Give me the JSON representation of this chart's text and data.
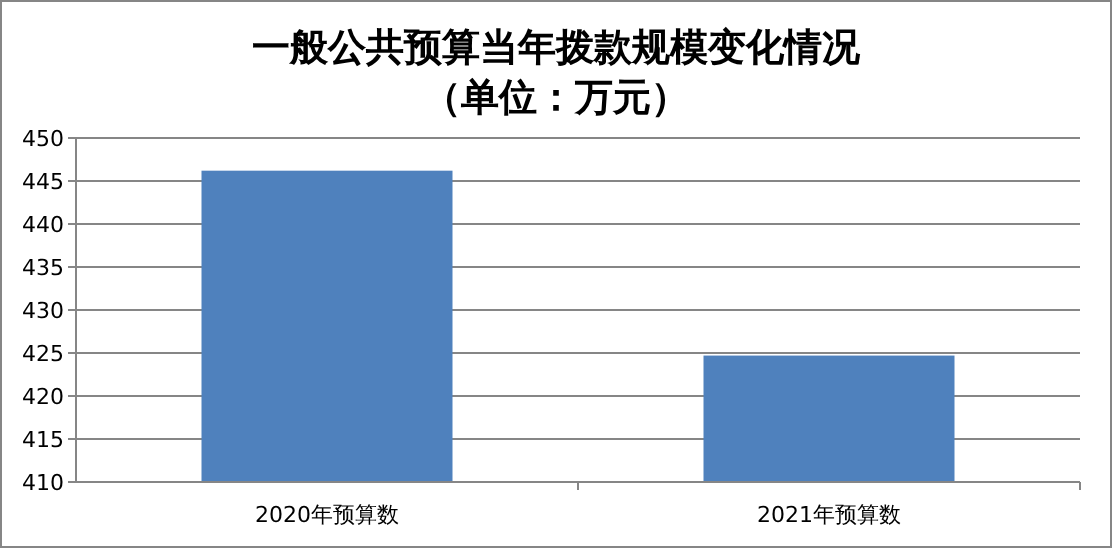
{
  "chart_data": {
    "type": "bar",
    "title": "一般公共预算当年拨款规模变化情况",
    "subtitle": "（单位：万元）",
    "categories": [
      "2020年预算数",
      "2021年预算数"
    ],
    "values": [
      446.2,
      424.7
    ],
    "color": "#4f81bd",
    "ylim": [
      410,
      450
    ],
    "yticks": [
      410,
      415,
      420,
      425,
      430,
      435,
      440,
      445,
      450
    ],
    "grid": "y"
  }
}
